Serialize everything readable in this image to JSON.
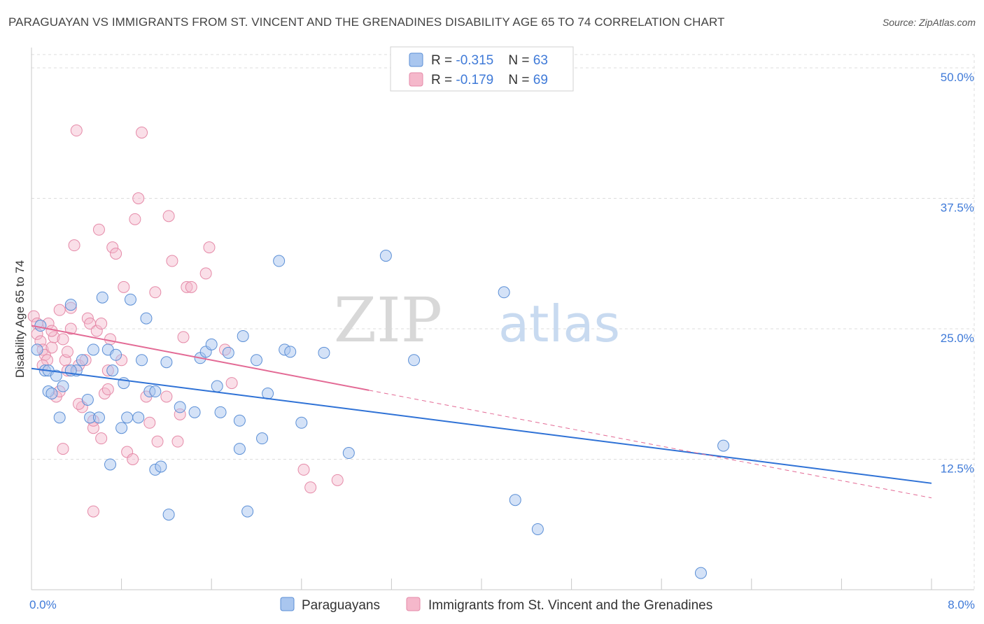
{
  "title": "PARAGUAYAN VS IMMIGRANTS FROM ST. VINCENT AND THE GRENADINES DISABILITY AGE 65 TO 74 CORRELATION CHART",
  "source": "Source: ZipAtlas.com",
  "watermark": {
    "zip": "ZIP",
    "atlas": "atlas"
  },
  "colors": {
    "blue_fill": "#a9c6ef",
    "blue_stroke": "#5b8fd6",
    "blue_line": "#2f72d6",
    "pink_fill": "#f5b8cb",
    "pink_stroke": "#e58aa8",
    "pink_line": "#e36a95",
    "tick_label": "#3f7ad8",
    "grid": "#dcdcdc"
  },
  "legend_box": {
    "rows": [
      {
        "series": "Paraguayans",
        "r_label": "R = ",
        "r_value": "-0.315",
        "n_label": "N = ",
        "n_value": "63"
      },
      {
        "series": "Immigrants from St. Vincent and the Grenadines",
        "r_label": "R = ",
        "r_value": "-0.179",
        "n_label": "N = ",
        "n_value": "69"
      }
    ]
  },
  "chart_data": {
    "type": "scatter",
    "title": "PARAGUAYAN VS IMMIGRANTS FROM ST. VINCENT AND THE GRENADINES DISABILITY AGE 65 TO 74 CORRELATION CHART",
    "xlabel": "",
    "ylabel": "Disability Age 65 to 74",
    "xlim": [
      0,
      8
    ],
    "ylim": [
      0,
      50
    ],
    "x_tick_labels": [
      {
        "value": 0,
        "label": "0.0%"
      },
      {
        "value": 8,
        "label": "8.0%"
      }
    ],
    "y_tick_labels": [
      {
        "value": 12.5,
        "label": "12.5%"
      },
      {
        "value": 25,
        "label": "25.0%"
      },
      {
        "value": 37.5,
        "label": "37.5%"
      },
      {
        "value": 50,
        "label": "50.0%"
      }
    ],
    "grid": true,
    "legend_position": "bottom",
    "series": [
      {
        "name": "Paraguayans",
        "color": "#a9c6ef",
        "trend": {
          "x0": 0,
          "y0": 21.2,
          "x1": 8,
          "y1": 10.2,
          "dashed_from": null
        },
        "points": [
          [
            0.05,
            23.0
          ],
          [
            0.08,
            25.3
          ],
          [
            0.12,
            21.0
          ],
          [
            0.15,
            19.0
          ],
          [
            0.15,
            21.0
          ],
          [
            0.18,
            18.8
          ],
          [
            0.22,
            20.5
          ],
          [
            0.25,
            16.5
          ],
          [
            0.28,
            19.5
          ],
          [
            0.35,
            27.3
          ],
          [
            0.4,
            21.0
          ],
          [
            0.45,
            22.0
          ],
          [
            0.5,
            18.2
          ],
          [
            0.52,
            16.5
          ],
          [
            0.55,
            23.0
          ],
          [
            0.6,
            16.5
          ],
          [
            0.63,
            28.0
          ],
          [
            0.68,
            23.0
          ],
          [
            0.7,
            12.0
          ],
          [
            0.72,
            21.0
          ],
          [
            0.75,
            22.5
          ],
          [
            0.8,
            15.5
          ],
          [
            0.82,
            19.8
          ],
          [
            0.85,
            16.5
          ],
          [
            0.88,
            27.8
          ],
          [
            0.95,
            16.5
          ],
          [
            0.98,
            22.0
          ],
          [
            1.02,
            26.0
          ],
          [
            1.05,
            19.0
          ],
          [
            1.1,
            19.0
          ],
          [
            1.1,
            11.5
          ],
          [
            1.15,
            11.8
          ],
          [
            1.2,
            21.8
          ],
          [
            1.22,
            7.2
          ],
          [
            1.32,
            17.5
          ],
          [
            1.45,
            17.0
          ],
          [
            1.5,
            22.2
          ],
          [
            1.55,
            22.8
          ],
          [
            1.6,
            23.5
          ],
          [
            1.65,
            19.5
          ],
          [
            1.68,
            17.0
          ],
          [
            1.75,
            22.7
          ],
          [
            1.85,
            13.5
          ],
          [
            1.85,
            16.2
          ],
          [
            1.88,
            24.3
          ],
          [
            1.92,
            7.5
          ],
          [
            2.0,
            22.0
          ],
          [
            2.05,
            14.5
          ],
          [
            2.1,
            18.8
          ],
          [
            2.2,
            31.5
          ],
          [
            2.25,
            23.0
          ],
          [
            2.3,
            22.8
          ],
          [
            2.4,
            16.0
          ],
          [
            2.6,
            22.7
          ],
          [
            2.82,
            13.1
          ],
          [
            3.15,
            32.0
          ],
          [
            3.4,
            22.0
          ],
          [
            4.2,
            28.5
          ],
          [
            4.3,
            8.6
          ],
          [
            4.5,
            5.8
          ],
          [
            6.15,
            13.8
          ],
          [
            5.95,
            1.6
          ],
          [
            0.35,
            21.0
          ]
        ]
      },
      {
        "name": "Immigrants from St. Vincent and the Grenadines",
        "color": "#f5b8cb",
        "trend": {
          "x0": 0,
          "y0": 25.3,
          "x1": 8,
          "y1": 8.8,
          "dashed_from": 3.0
        },
        "points": [
          [
            0.02,
            26.2
          ],
          [
            0.05,
            24.5
          ],
          [
            0.08,
            23.8
          ],
          [
            0.1,
            23.0
          ],
          [
            0.12,
            22.5
          ],
          [
            0.14,
            22.0
          ],
          [
            0.15,
            25.5
          ],
          [
            0.18,
            23.2
          ],
          [
            0.2,
            24.2
          ],
          [
            0.22,
            18.5
          ],
          [
            0.25,
            26.8
          ],
          [
            0.28,
            24.0
          ],
          [
            0.28,
            13.5
          ],
          [
            0.3,
            22.0
          ],
          [
            0.32,
            21.0
          ],
          [
            0.35,
            25.0
          ],
          [
            0.35,
            27.0
          ],
          [
            0.38,
            33.0
          ],
          [
            0.4,
            44.0
          ],
          [
            0.42,
            21.5
          ],
          [
            0.45,
            17.5
          ],
          [
            0.48,
            22.0
          ],
          [
            0.5,
            26.0
          ],
          [
            0.52,
            25.5
          ],
          [
            0.55,
            15.5
          ],
          [
            0.55,
            7.5
          ],
          [
            0.58,
            24.8
          ],
          [
            0.6,
            34.5
          ],
          [
            0.62,
            14.5
          ],
          [
            0.62,
            25.5
          ],
          [
            0.65,
            18.8
          ],
          [
            0.68,
            19.2
          ],
          [
            0.7,
            24.0
          ],
          [
            0.72,
            32.8
          ],
          [
            0.75,
            32.2
          ],
          [
            0.8,
            22.0
          ],
          [
            0.82,
            29.0
          ],
          [
            0.85,
            13.2
          ],
          [
            0.9,
            12.5
          ],
          [
            0.92,
            35.5
          ],
          [
            0.95,
            37.5
          ],
          [
            0.98,
            43.8
          ],
          [
            1.02,
            18.5
          ],
          [
            1.05,
            16.0
          ],
          [
            1.1,
            28.5
          ],
          [
            1.12,
            14.2
          ],
          [
            1.22,
            35.8
          ],
          [
            1.25,
            31.5
          ],
          [
            1.3,
            14.2
          ],
          [
            1.32,
            16.8
          ],
          [
            1.35,
            24.2
          ],
          [
            1.38,
            29.0
          ],
          [
            1.42,
            29.0
          ],
          [
            1.55,
            30.3
          ],
          [
            1.58,
            32.8
          ],
          [
            1.72,
            23.0
          ],
          [
            1.78,
            19.8
          ],
          [
            2.42,
            11.5
          ],
          [
            2.48,
            9.8
          ],
          [
            2.72,
            10.5
          ],
          [
            0.32,
            22.8
          ],
          [
            0.1,
            21.5
          ],
          [
            0.05,
            25.5
          ],
          [
            0.18,
            24.8
          ],
          [
            0.55,
            16.2
          ],
          [
            0.68,
            21.0
          ],
          [
            0.25,
            19.0
          ],
          [
            0.42,
            17.8
          ],
          [
            1.2,
            18.5
          ]
        ]
      }
    ]
  }
}
